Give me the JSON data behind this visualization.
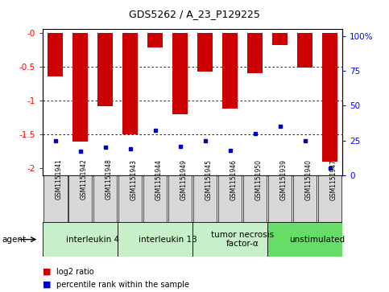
{
  "title": "GDS5262 / A_23_P129225",
  "samples": [
    "GSM1151941",
    "GSM1151942",
    "GSM1151948",
    "GSM1151943",
    "GSM1151944",
    "GSM1151949",
    "GSM1151945",
    "GSM1151946",
    "GSM1151950",
    "GSM1151939",
    "GSM1151940",
    "GSM1151947"
  ],
  "log2_ratio": [
    -0.65,
    -1.6,
    -1.08,
    -1.5,
    -0.22,
    -1.2,
    -0.57,
    -1.12,
    -0.6,
    -0.18,
    -0.52,
    -1.9
  ],
  "percentile": [
    25,
    17,
    20,
    19,
    32,
    21,
    25,
    18,
    30,
    35,
    25,
    5
  ],
  "groups": [
    {
      "label": "interleukin 4",
      "start": 0,
      "end": 3,
      "color": "#c8f0c8"
    },
    {
      "label": "interleukin 13",
      "start": 3,
      "end": 6,
      "color": "#c8f0c8"
    },
    {
      "label": "tumor necrosis\nfactor-α",
      "start": 6,
      "end": 9,
      "color": "#c8f0c8"
    },
    {
      "label": "unstimulated",
      "start": 9,
      "end": 12,
      "color": "#66dd66"
    }
  ],
  "bar_color": "#cc0000",
  "percentile_color": "#0000cc",
  "ylim_left": [
    -2.1,
    0.05
  ],
  "yticks_left": [
    0.0,
    -0.5,
    -1.0,
    -1.5,
    -2.0
  ],
  "ylim_right": [
    0,
    105
  ],
  "yticks_right": [
    0,
    25,
    50,
    75,
    100
  ],
  "agent_label": "agent",
  "legend_log2": "log2 ratio",
  "legend_pct": "percentile rank within the sample"
}
